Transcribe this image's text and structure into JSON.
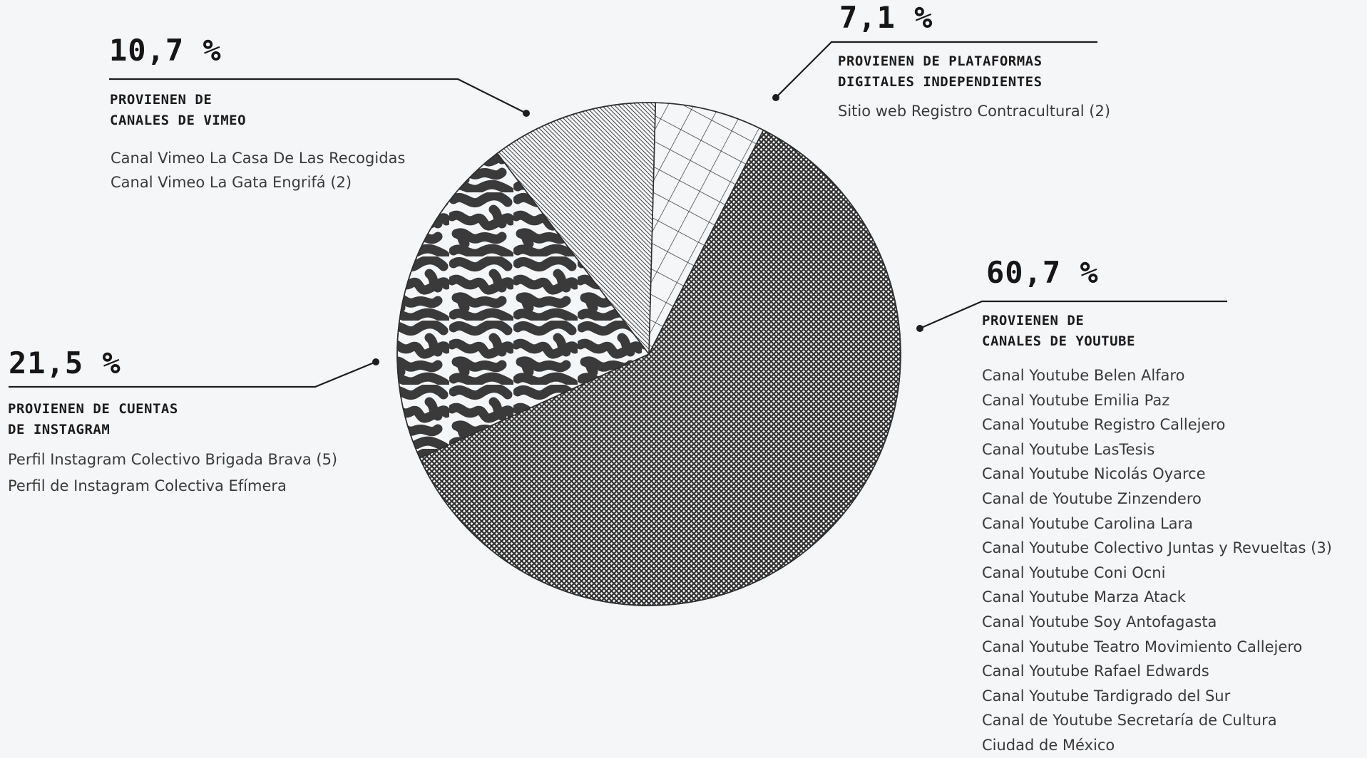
{
  "chart_data": {
    "type": "pie",
    "slices": [
      {
        "key": "youtube",
        "value": 60.7,
        "percent_label": "60,7 %",
        "heading": [
          "PROVIENEN DE",
          "CANALES DE YOUTUBE"
        ],
        "pattern": "crosshatch-dense",
        "items": [
          "Canal Youtube Belen Alfaro",
          "Canal Youtube Emilia Paz",
          "Canal Youtube Registro Callejero",
          "Canal Youtube LasTesis",
          "Canal Youtube Nicolás Oyarce",
          "Canal de Youtube Zinzendero",
          "Canal Youtube Carolina Lara",
          "Canal Youtube Colectivo Juntas y Revueltas (3)",
          "Canal Youtube Coni Ocni",
          "Canal Youtube Marza Atack",
          "Canal Youtube Soy Antofagasta",
          "Canal Youtube Teatro Movimiento Callejero",
          "Canal Youtube Rafael Edwards",
          "Canal Youtube Tardigrado del Sur",
          "Canal de Youtube Secretaría de Cultura",
          "Ciudad de México"
        ]
      },
      {
        "key": "instagram",
        "value": 21.5,
        "percent_label": "21,5 %",
        "heading": [
          "PROVIENEN DE CUENTAS",
          "DE INSTAGRAM"
        ],
        "pattern": "organic-maze",
        "items": [
          "Perfil Instagram Colectivo Brigada Brava (5)",
          "Perfil de  Instagram Colectiva Efímera"
        ]
      },
      {
        "key": "vimeo",
        "value": 10.7,
        "percent_label": "10,7 %",
        "heading": [
          "PROVIENEN DE",
          "CANALES DE VIMEO"
        ],
        "pattern": "diagonal-lines",
        "items": [
          "Canal Vimeo La Casa De Las Recogidas",
          "Canal Vimeo La Gata Engrifá (2)"
        ]
      },
      {
        "key": "independientes",
        "value": 7.1,
        "percent_label": "7,1 %",
        "heading": [
          "PROVIENEN DE PLATAFORMAS",
          "DIGITALES INDEPENDIENTES"
        ],
        "pattern": "square-grid",
        "items": [
          "Sitio web Registro Contracultural (2)"
        ]
      }
    ]
  },
  "colors": {
    "background": "#f5f6f8",
    "ink": "#333333"
  }
}
